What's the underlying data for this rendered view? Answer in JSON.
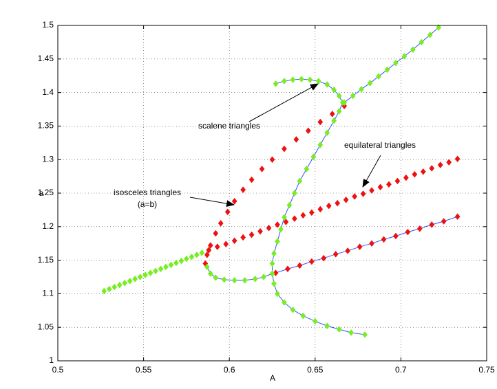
{
  "chart_data": {
    "type": "scatter",
    "xlabel": "A",
    "ylabel": "a",
    "xlim": [
      0.5,
      0.75
    ],
    "ylim": [
      1,
      1.5
    ],
    "xticks": [
      0.5,
      0.55,
      0.6,
      0.65,
      0.7,
      0.75
    ],
    "yticks": [
      1,
      1.05,
      1.1,
      1.15,
      1.2,
      1.25,
      1.3,
      1.35,
      1.4,
      1.45,
      1.5
    ],
    "grid": true,
    "annotations": [
      {
        "lines": [
          "scalene triangles"
        ]
      },
      {
        "lines": [
          "equilateral triangles"
        ]
      },
      {
        "lines": [
          "isosceles triangles",
          "(a=b)"
        ]
      }
    ],
    "series": [
      {
        "color": "#77ee22",
        "x": [
          0.527,
          0.53,
          0.533,
          0.536,
          0.539,
          0.542,
          0.545,
          0.548,
          0.551,
          0.554,
          0.557,
          0.56,
          0.563,
          0.566,
          0.569,
          0.572,
          0.575,
          0.578,
          0.581,
          0.584,
          0.588
        ],
        "y": [
          1.104,
          1.107,
          1.11,
          1.113,
          1.116,
          1.119,
          1.122,
          1.125,
          1.128,
          1.131,
          1.134,
          1.137,
          1.14,
          1.143,
          1.146,
          1.149,
          1.152,
          1.155,
          1.158,
          1.161,
          1.165
        ]
      },
      {
        "color": "#ee1111",
        "x": [
          0.588,
          0.593,
          0.598,
          0.603,
          0.608,
          0.613,
          0.618,
          0.623,
          0.628,
          0.633,
          0.638,
          0.643,
          0.648,
          0.653,
          0.658,
          0.663,
          0.668,
          0.673,
          0.678,
          0.683,
          0.688,
          0.693,
          0.698,
          0.703,
          0.708,
          0.713,
          0.718,
          0.723,
          0.728,
          0.733
        ],
        "y": [
          1.165,
          1.17,
          1.174,
          1.179,
          1.184,
          1.188,
          1.193,
          1.198,
          1.203,
          1.207,
          1.212,
          1.217,
          1.221,
          1.226,
          1.231,
          1.235,
          1.24,
          1.245,
          1.249,
          1.254,
          1.259,
          1.263,
          1.268,
          1.273,
          1.278,
          1.282,
          1.287,
          1.292,
          1.296,
          1.301
        ]
      },
      {
        "color": "#ee1111",
        "x": [
          0.586,
          0.587,
          0.589,
          0.592,
          0.595,
          0.599,
          0.603,
          0.608,
          0.613,
          0.619,
          0.625,
          0.632,
          0.639,
          0.646,
          0.653,
          0.66,
          0.667
        ],
        "y": [
          1.145,
          1.158,
          1.172,
          1.19,
          1.205,
          1.222,
          1.238,
          1.255,
          1.27,
          1.286,
          1.3,
          1.316,
          1.33,
          1.343,
          1.356,
          1.368,
          1.38
        ]
      },
      {
        "color": "#ee1111",
        "line_color": "#3355ff",
        "x": [
          0.627,
          0.634,
          0.641,
          0.648,
          0.655,
          0.662,
          0.669,
          0.676,
          0.683,
          0.69,
          0.697,
          0.704,
          0.711,
          0.718,
          0.725,
          0.733
        ],
        "y": [
          1.131,
          1.137,
          1.142,
          1.148,
          1.153,
          1.159,
          1.164,
          1.17,
          1.175,
          1.181,
          1.186,
          1.192,
          1.197,
          1.203,
          1.208,
          1.215
        ]
      },
      {
        "color": "#77ee22",
        "line_color": "#3355ff",
        "x": [
          0.627,
          0.632,
          0.637,
          0.642,
          0.647,
          0.652,
          0.657,
          0.661,
          0.664,
          0.666,
          0.664,
          0.661,
          0.657,
          0.653,
          0.649,
          0.645,
          0.641,
          0.638,
          0.635,
          0.632,
          0.63,
          0.628,
          0.626,
          0.625,
          0.625,
          0.626,
          0.628,
          0.632,
          0.637,
          0.643,
          0.65,
          0.657,
          0.664,
          0.671,
          0.679
        ],
        "y": [
          1.413,
          1.417,
          1.419,
          1.42,
          1.419,
          1.417,
          1.412,
          1.404,
          1.395,
          1.385,
          1.372,
          1.358,
          1.34,
          1.322,
          1.304,
          1.286,
          1.268,
          1.25,
          1.232,
          1.214,
          1.196,
          1.178,
          1.16,
          1.145,
          1.13,
          1.115,
          1.1,
          1.087,
          1.076,
          1.067,
          1.059,
          1.052,
          1.047,
          1.042,
          1.039
        ]
      },
      {
        "color": "#77ee22",
        "line_color": "#3355ff",
        "x": [
          0.587,
          0.589,
          0.592,
          0.597,
          0.603,
          0.609,
          0.615,
          0.62,
          0.625
        ],
        "y": [
          1.14,
          1.13,
          1.124,
          1.121,
          1.12,
          1.12,
          1.122,
          1.125,
          1.13
        ]
      },
      {
        "color": "#77ee22",
        "line_color": "#3355ff",
        "x": [
          0.667,
          0.672,
          0.677,
          0.682,
          0.687,
          0.692,
          0.697,
          0.702,
          0.707,
          0.712,
          0.717,
          0.722
        ],
        "y": [
          1.385,
          1.395,
          1.405,
          1.414,
          1.424,
          1.434,
          1.444,
          1.454,
          1.464,
          1.475,
          1.486,
          1.497
        ]
      }
    ]
  }
}
